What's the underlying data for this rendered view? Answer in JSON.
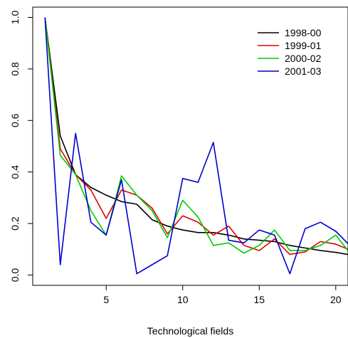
{
  "chart_data": {
    "type": "line",
    "title": "",
    "xlabel": "Technological fields",
    "ylabel": "",
    "xlim": [
      0.2,
      20.8
    ],
    "ylim": [
      -0.04,
      1.04
    ],
    "x_ticks": [
      5,
      10,
      15,
      20
    ],
    "y_ticks": [
      0.0,
      0.2,
      0.4,
      0.6,
      0.8,
      1.0
    ],
    "x_tick_labels": [
      "5",
      "10",
      "15",
      "20"
    ],
    "y_tick_labels": [
      "0.0",
      "0.2",
      "0.4",
      "0.6",
      "0.8",
      "1.0"
    ],
    "grid": false,
    "legend_position": "top-right",
    "x": [
      1,
      2,
      3,
      4,
      5,
      6,
      7,
      8,
      9,
      10,
      11,
      12,
      13,
      14,
      15,
      16,
      17,
      18,
      19,
      20,
      21
    ],
    "series": [
      {
        "name": "1998-00",
        "color": "#000000",
        "values": [
          1.0,
          0.54,
          0.39,
          0.34,
          0.31,
          0.285,
          0.275,
          0.215,
          0.19,
          0.175,
          0.165,
          0.165,
          0.155,
          0.14,
          0.135,
          0.13,
          0.115,
          0.105,
          0.095,
          0.088,
          0.078
        ]
      },
      {
        "name": "1999-01",
        "color": "#e00000",
        "values": [
          1.0,
          0.49,
          0.39,
          0.33,
          0.22,
          0.33,
          0.31,
          0.26,
          0.16,
          0.23,
          0.205,
          0.155,
          0.19,
          0.115,
          0.095,
          0.14,
          0.08,
          0.09,
          0.13,
          0.12,
          0.095
        ]
      },
      {
        "name": "2000-02",
        "color": "#00cc00",
        "values": [
          1.0,
          0.465,
          0.39,
          0.25,
          0.155,
          0.385,
          0.31,
          0.25,
          0.145,
          0.29,
          0.225,
          0.115,
          0.125,
          0.085,
          0.115,
          0.175,
          0.095,
          0.095,
          0.115,
          0.155,
          0.08
        ]
      },
      {
        "name": "2001-03",
        "color": "#0000cc",
        "values": [
          1.0,
          0.04,
          0.55,
          0.205,
          0.155,
          0.37,
          0.005,
          0.04,
          0.075,
          0.375,
          0.36,
          0.515,
          0.135,
          0.125,
          0.175,
          0.155,
          0.005,
          0.18,
          0.205,
          0.17,
          0.11
        ]
      }
    ]
  }
}
